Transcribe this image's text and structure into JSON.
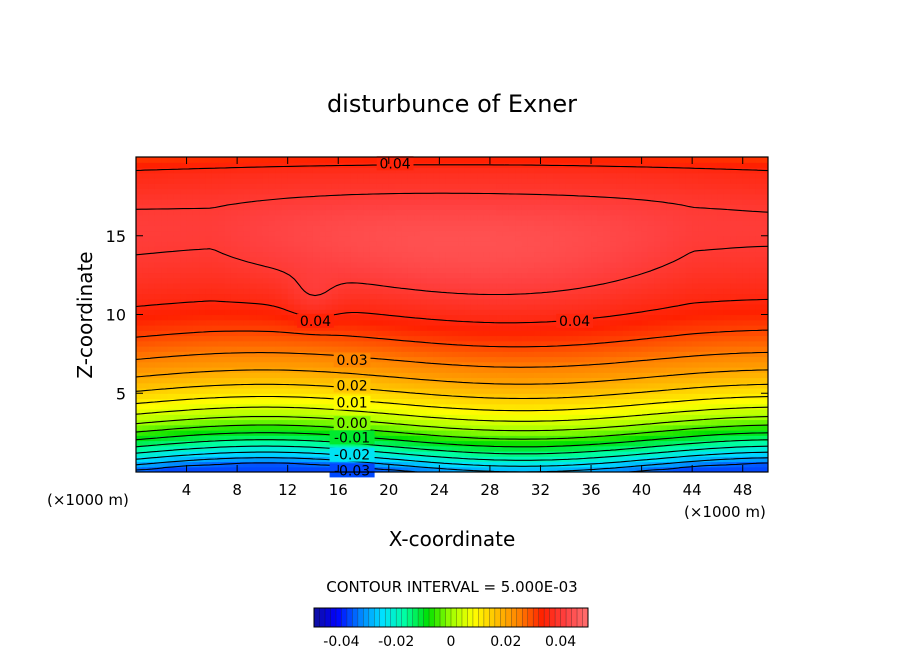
{
  "chart_data": {
    "type": "heatmap",
    "title": "disturbunce of Exner",
    "xlabel": "X-coordinate",
    "ylabel": "Z-coordinate",
    "x_unit": "(×1000 m)",
    "y_unit": "(×1000 m)",
    "xlim": [
      0,
      50
    ],
    "ylim": [
      0,
      20
    ],
    "x_ticks": [
      "4",
      "8",
      "12",
      "16",
      "20",
      "24",
      "28",
      "32",
      "36",
      "40",
      "44",
      "48"
    ],
    "y_ticks": [
      "5",
      "10",
      "15"
    ],
    "contour_interval_text": "CONTOUR INTERVAL = 5.000E-03",
    "contour_labels": [
      {
        "text": "0.04",
        "x": 20.5,
        "z": 19.6
      },
      {
        "text": "0.04",
        "x": 14.2,
        "z": 9.6
      },
      {
        "text": "0.04",
        "x": 34.7,
        "z": 9.6
      },
      {
        "text": "0.03",
        "x": 17.1,
        "z": 7.1
      },
      {
        "text": "0.02",
        "x": 17.1,
        "z": 5.5
      },
      {
        "text": "0.01",
        "x": 17.1,
        "z": 4.4
      },
      {
        "text": "0.00",
        "x": 17.1,
        "z": 3.1
      },
      {
        "text": "-0.01",
        "x": 17.1,
        "z": 2.2
      },
      {
        "text": "-0.02",
        "x": 17.1,
        "z": 1.1
      },
      {
        "text": "-0.03",
        "x": 17.1,
        "z": 0.1
      }
    ],
    "field": {
      "description": "Exner pressure perturbation; negative near surface, increasing with height to a broad maximum (~0.045) at z≈13-14, decreasing toward the top",
      "max_value": 0.046,
      "min_value": -0.04
    },
    "colorbar": {
      "min": -0.05,
      "max": 0.05,
      "tick_labels": [
        "-0.04",
        "-0.02",
        "0",
        "0.02",
        "0.04"
      ],
      "tick_values": [
        -0.04,
        -0.02,
        0,
        0.02,
        0.04
      ]
    },
    "colormap": [
      "#1010a0",
      "#0000ff",
      "#0080ff",
      "#00e0ff",
      "#00ffa0",
      "#00e000",
      "#a0ff00",
      "#ffff00",
      "#ffc000",
      "#ff8000",
      "#ff2000",
      "#ff4040",
      "#ff7070"
    ]
  }
}
